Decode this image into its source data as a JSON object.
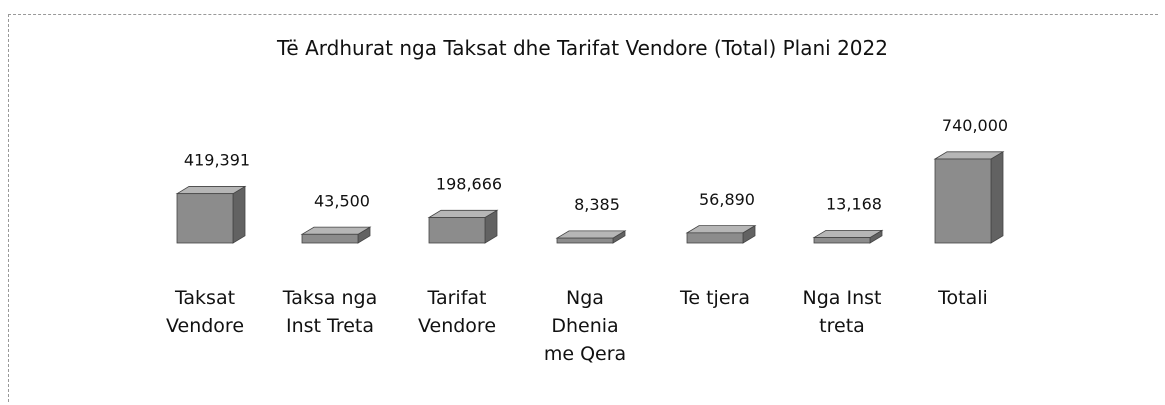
{
  "chart_data": {
    "type": "bar3d",
    "title": "Të Ardhurat nga Taksat dhe Tarifat Vendore (Total) Plani 2022",
    "categories": [
      "Taksat Vendore",
      "Taksa nga Inst Treta",
      "Tarifat Vendore",
      "Nga Dhenia me Qera",
      "Te tjera",
      "Nga Inst treta",
      "Totali"
    ],
    "values": [
      419391,
      43500,
      198666,
      8385,
      56890,
      13168,
      740000
    ],
    "value_labels": [
      "419,391",
      "43,500",
      "198,666",
      "8,385",
      "56,890",
      "13,168",
      "740,000"
    ],
    "color": "#8c8c8c"
  }
}
